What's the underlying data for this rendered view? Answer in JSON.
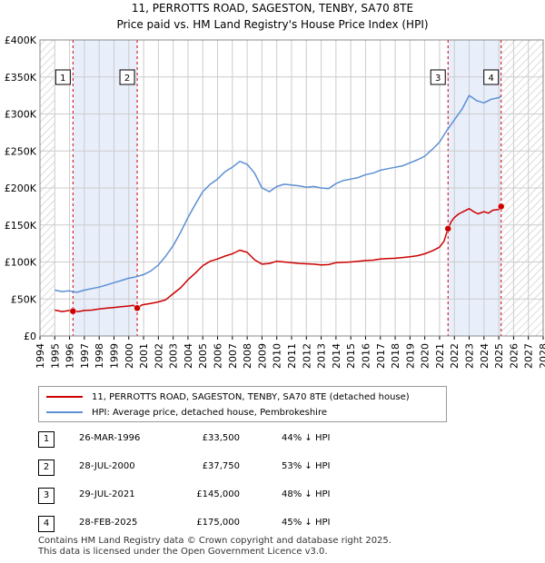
{
  "title_line1": "11, PERROTTS ROAD, SAGESTON, TENBY, SA70 8TE",
  "title_line2": "Price paid vs. HM Land Registry's House Price Index (HPI)",
  "colors": {
    "property": "#cc0000",
    "hpi": "#5b8fd4",
    "shade": "#e8eefa",
    "grid": "#cccccc"
  },
  "chart_data": {
    "type": "line",
    "xlim": [
      1994,
      2028
    ],
    "ylim": [
      0,
      400000
    ],
    "yticks": [
      0,
      50000,
      100000,
      150000,
      200000,
      250000,
      300000,
      350000,
      400000
    ],
    "ytick_labels": [
      "£0",
      "£50K",
      "£100K",
      "£150K",
      "£200K",
      "£250K",
      "£300K",
      "£350K",
      "£400K"
    ],
    "xticks": [
      "1994",
      "1995",
      "1996",
      "1997",
      "1998",
      "1999",
      "2000",
      "2001",
      "2002",
      "2003",
      "2004",
      "2005",
      "2006",
      "2007",
      "2008",
      "2009",
      "2010",
      "2011",
      "2012",
      "2013",
      "2014",
      "2015",
      "2016",
      "2017",
      "2018",
      "2019",
      "2020",
      "2021",
      "2022",
      "2023",
      "2024",
      "2025",
      "2026",
      "2027",
      "2028"
    ],
    "grid": true,
    "hatched_ranges": [
      [
        1994,
        1995
      ],
      [
        2025.16,
        2028
      ]
    ],
    "shaded_ranges": [
      [
        1996.23,
        2000.57
      ],
      [
        2021.57,
        2025.16
      ]
    ],
    "series": [
      {
        "name": "11, PERROTTS ROAD, SAGESTON, TENBY, SA70 8TE (detached house)",
        "color": "#cc0000",
        "x": [
          1995.0,
          1995.5,
          1996.0,
          1996.23,
          1996.6,
          1997.0,
          1997.5,
          1998.0,
          1998.5,
          1999.0,
          1999.5,
          2000.0,
          2000.3,
          2000.57,
          2000.9,
          2001.5,
          2002.0,
          2002.5,
          2003.0,
          2003.5,
          2004.0,
          2004.5,
          2005.0,
          2005.5,
          2006.0,
          2006.5,
          2007.0,
          2007.5,
          2008.0,
          2008.5,
          2009.0,
          2009.5,
          2010.0,
          2010.5,
          2011.0,
          2011.5,
          2012.0,
          2012.5,
          2013.0,
          2013.5,
          2014.0,
          2014.5,
          2015.0,
          2015.5,
          2016.0,
          2016.5,
          2017.0,
          2017.5,
          2018.0,
          2018.5,
          2019.0,
          2019.5,
          2020.0,
          2020.5,
          2021.0,
          2021.3,
          2021.57,
          2021.8,
          2022.0,
          2022.3,
          2022.6,
          2023.0,
          2023.3,
          2023.6,
          2024.0,
          2024.3,
          2024.6,
          2025.0,
          2025.16
        ],
        "values": [
          35000,
          33000,
          34500,
          33500,
          33000,
          34500,
          35000,
          36500,
          37500,
          38500,
          39500,
          40500,
          41500,
          37750,
          42000,
          44000,
          46000,
          49000,
          57000,
          65000,
          76000,
          85000,
          95000,
          101000,
          104000,
          108000,
          111000,
          116000,
          113000,
          103000,
          97000,
          98000,
          101000,
          100000,
          99000,
          98000,
          97500,
          97000,
          96000,
          96500,
          99000,
          99500,
          100000,
          101000,
          102000,
          102500,
          104000,
          104500,
          105000,
          106000,
          107000,
          108500,
          111000,
          115000,
          120000,
          128000,
          145000,
          155000,
          160000,
          165000,
          168000,
          172000,
          168000,
          165000,
          168000,
          166000,
          170000,
          171000,
          175000
        ]
      },
      {
        "name": "HPI: Average price, detached house, Pembrokeshire",
        "color": "#5b8fd4",
        "x": [
          1995.0,
          1995.5,
          1996.0,
          1996.5,
          1997.0,
          1997.5,
          1998.0,
          1998.5,
          1999.0,
          1999.5,
          2000.0,
          2000.5,
          2001.0,
          2001.5,
          2002.0,
          2002.5,
          2003.0,
          2003.5,
          2004.0,
          2004.5,
          2005.0,
          2005.5,
          2006.0,
          2006.5,
          2007.0,
          2007.5,
          2008.0,
          2008.5,
          2009.0,
          2009.5,
          2010.0,
          2010.5,
          2011.0,
          2011.5,
          2012.0,
          2012.5,
          2013.0,
          2013.5,
          2014.0,
          2014.5,
          2015.0,
          2015.5,
          2016.0,
          2016.5,
          2017.0,
          2017.5,
          2018.0,
          2018.5,
          2019.0,
          2019.5,
          2020.0,
          2020.5,
          2021.0,
          2021.5,
          2022.0,
          2022.5,
          2023.0,
          2023.5,
          2024.0,
          2024.5,
          2025.0,
          2025.16
        ],
        "values": [
          62000,
          60000,
          61000,
          59000,
          62000,
          64000,
          66000,
          69000,
          72000,
          75000,
          78000,
          80000,
          83000,
          88000,
          96000,
          108000,
          122000,
          140000,
          160000,
          178000,
          195000,
          205000,
          212000,
          222000,
          228000,
          236000,
          232000,
          220000,
          200000,
          195000,
          202000,
          205000,
          204000,
          203000,
          201000,
          202000,
          200000,
          199000,
          206000,
          210000,
          212000,
          214000,
          218000,
          220000,
          224000,
          226000,
          228000,
          230000,
          234000,
          238000,
          243000,
          252000,
          262000,
          278000,
          292000,
          306000,
          325000,
          318000,
          315000,
          320000,
          322000,
          324000
        ]
      }
    ],
    "markers": [
      {
        "label": "1",
        "x": 1996.23,
        "value": 33500
      },
      {
        "label": "2",
        "x": 2000.57,
        "value": 37750
      },
      {
        "label": "3",
        "x": 2021.57,
        "value": 145000
      },
      {
        "label": "4",
        "x": 2025.16,
        "value": 175000
      }
    ]
  },
  "legend": {
    "property": "11, PERROTTS ROAD, SAGESTON, TENBY, SA70 8TE (detached house)",
    "hpi": "HPI: Average price, detached house, Pembrokeshire"
  },
  "sales": [
    {
      "num": "1",
      "date": "26-MAR-1996",
      "price": "£33,500",
      "hpi": "44% ↓ HPI"
    },
    {
      "num": "2",
      "date": "28-JUL-2000",
      "price": "£37,750",
      "hpi": "53% ↓ HPI"
    },
    {
      "num": "3",
      "date": "29-JUL-2021",
      "price": "£145,000",
      "hpi": "48% ↓ HPI"
    },
    {
      "num": "4",
      "date": "28-FEB-2025",
      "price": "£175,000",
      "hpi": "45% ↓ HPI"
    }
  ],
  "footer": {
    "line1": "Contains HM Land Registry data © Crown copyright and database right 2025.",
    "line2": "This data is licensed under the Open Government Licence v3.0."
  }
}
